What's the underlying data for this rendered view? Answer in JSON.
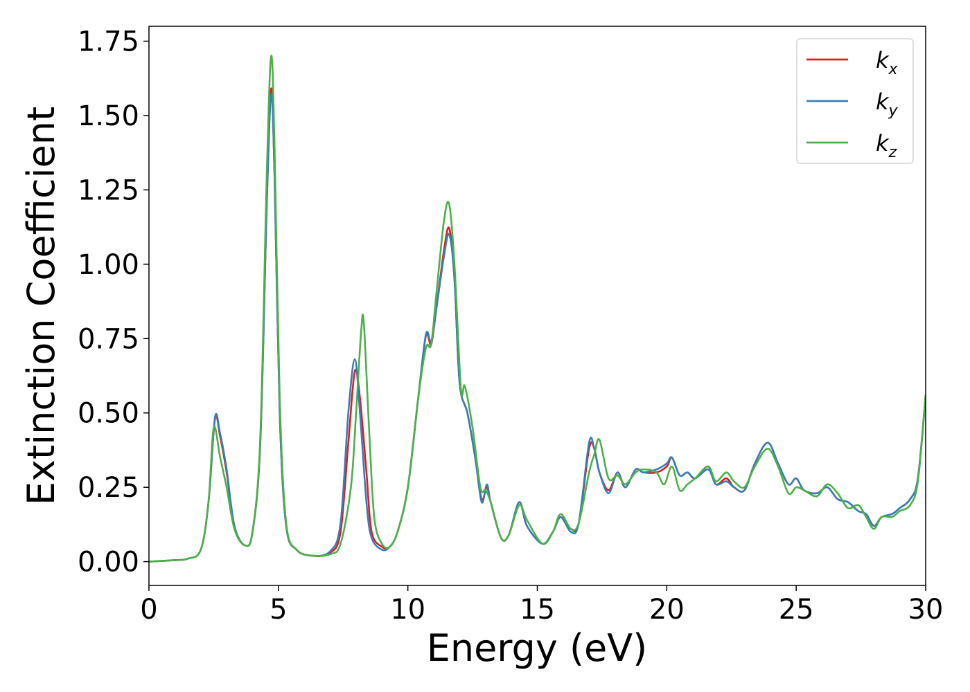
{
  "chart_data": {
    "type": "line",
    "title": "",
    "xlabel": "Energy (eV)",
    "ylabel": "Extinction Coefficient",
    "xlim": [
      0,
      30
    ],
    "ylim": [
      -0.08,
      1.8
    ],
    "xticks": [
      0,
      5,
      10,
      15,
      20,
      25,
      30
    ],
    "xtick_labels": [
      "0",
      "5",
      "10",
      "15",
      "20",
      "25",
      "30"
    ],
    "yticks": [
      0,
      0.25,
      0.5,
      0.75,
      1.0,
      1.25,
      1.5,
      1.75
    ],
    "ytick_labels": [
      "0.00",
      "0.25",
      "0.50",
      "0.75",
      "1.00",
      "1.25",
      "1.50",
      "1.75"
    ],
    "grid": false,
    "legend_position": "top-right",
    "series": [
      {
        "name": "k",
        "subscript": "x",
        "color": "#e41a1c",
        "points": [
          [
            0,
            0.0
          ],
          [
            1,
            0.005
          ],
          [
            1.5,
            0.01
          ],
          [
            2,
            0.04
          ],
          [
            2.3,
            0.2
          ],
          [
            2.55,
            0.48
          ],
          [
            2.75,
            0.42
          ],
          [
            3,
            0.3
          ],
          [
            3.3,
            0.12
          ],
          [
            3.7,
            0.055
          ],
          [
            4.0,
            0.1
          ],
          [
            4.3,
            0.4
          ],
          [
            4.55,
            1.2
          ],
          [
            4.72,
            1.59
          ],
          [
            4.85,
            1.3
          ],
          [
            5.05,
            0.5
          ],
          [
            5.3,
            0.12
          ],
          [
            5.7,
            0.04
          ],
          [
            6.3,
            0.02
          ],
          [
            7.0,
            0.03
          ],
          [
            7.4,
            0.1
          ],
          [
            7.7,
            0.4
          ],
          [
            7.95,
            0.64
          ],
          [
            8.15,
            0.55
          ],
          [
            8.4,
            0.3
          ],
          [
            8.6,
            0.1
          ],
          [
            9.0,
            0.05
          ],
          [
            9.3,
            0.05
          ],
          [
            9.6,
            0.1
          ],
          [
            10.0,
            0.25
          ],
          [
            10.4,
            0.55
          ],
          [
            10.7,
            0.76
          ],
          [
            10.9,
            0.73
          ],
          [
            11.1,
            0.85
          ],
          [
            11.4,
            1.05
          ],
          [
            11.6,
            1.12
          ],
          [
            11.8,
            0.95
          ],
          [
            12.0,
            0.6
          ],
          [
            12.3,
            0.5
          ],
          [
            12.6,
            0.35
          ],
          [
            12.85,
            0.21
          ],
          [
            13.05,
            0.25
          ],
          [
            13.2,
            0.2
          ],
          [
            13.6,
            0.08
          ],
          [
            13.9,
            0.09
          ],
          [
            14.3,
            0.2
          ],
          [
            14.6,
            0.12
          ],
          [
            15.2,
            0.06
          ],
          [
            15.6,
            0.1
          ],
          [
            15.9,
            0.15
          ],
          [
            16.3,
            0.11
          ],
          [
            16.6,
            0.13
          ],
          [
            17.0,
            0.38
          ],
          [
            17.2,
            0.38
          ],
          [
            17.4,
            0.3
          ],
          [
            17.75,
            0.24
          ],
          [
            18.1,
            0.3
          ],
          [
            18.4,
            0.25
          ],
          [
            18.8,
            0.31
          ],
          [
            19.1,
            0.3
          ],
          [
            19.6,
            0.3
          ],
          [
            20.0,
            0.32
          ],
          [
            20.2,
            0.35
          ],
          [
            20.5,
            0.29
          ],
          [
            20.8,
            0.3
          ],
          [
            21.1,
            0.28
          ],
          [
            21.6,
            0.32
          ],
          [
            21.9,
            0.26
          ],
          [
            22.3,
            0.28
          ],
          [
            22.6,
            0.25
          ],
          [
            23.0,
            0.24
          ],
          [
            23.4,
            0.33
          ],
          [
            23.9,
            0.4
          ],
          [
            24.3,
            0.33
          ],
          [
            24.7,
            0.26
          ],
          [
            25.0,
            0.28
          ],
          [
            25.3,
            0.24
          ],
          [
            25.8,
            0.23
          ],
          [
            26.2,
            0.25
          ],
          [
            26.6,
            0.21
          ],
          [
            27.0,
            0.2
          ],
          [
            27.4,
            0.17
          ],
          [
            27.7,
            0.16
          ],
          [
            28.0,
            0.12
          ],
          [
            28.3,
            0.15
          ],
          [
            28.7,
            0.16
          ],
          [
            29.0,
            0.18
          ],
          [
            29.4,
            0.21
          ],
          [
            29.7,
            0.28
          ],
          [
            30.0,
            0.56
          ]
        ]
      },
      {
        "name": "k",
        "subscript": "y",
        "color": "#377eb8",
        "points": [
          [
            0,
            0.0
          ],
          [
            1,
            0.005
          ],
          [
            1.5,
            0.01
          ],
          [
            2,
            0.04
          ],
          [
            2.3,
            0.2
          ],
          [
            2.55,
            0.485
          ],
          [
            2.75,
            0.43
          ],
          [
            3,
            0.31
          ],
          [
            3.3,
            0.12
          ],
          [
            3.7,
            0.055
          ],
          [
            4.0,
            0.1
          ],
          [
            4.3,
            0.4
          ],
          [
            4.55,
            1.2
          ],
          [
            4.72,
            1.57
          ],
          [
            4.85,
            1.3
          ],
          [
            5.05,
            0.5
          ],
          [
            5.3,
            0.12
          ],
          [
            5.7,
            0.04
          ],
          [
            6.3,
            0.02
          ],
          [
            7.0,
            0.035
          ],
          [
            7.4,
            0.13
          ],
          [
            7.7,
            0.5
          ],
          [
            7.95,
            0.68
          ],
          [
            8.15,
            0.5
          ],
          [
            8.4,
            0.2
          ],
          [
            8.6,
            0.08
          ],
          [
            9.0,
            0.04
          ],
          [
            9.3,
            0.05
          ],
          [
            9.6,
            0.1
          ],
          [
            10.0,
            0.25
          ],
          [
            10.4,
            0.55
          ],
          [
            10.7,
            0.765
          ],
          [
            10.9,
            0.74
          ],
          [
            11.1,
            0.85
          ],
          [
            11.4,
            1.03
          ],
          [
            11.6,
            1.1
          ],
          [
            11.8,
            0.95
          ],
          [
            12.0,
            0.6
          ],
          [
            12.3,
            0.5
          ],
          [
            12.6,
            0.35
          ],
          [
            12.85,
            0.2
          ],
          [
            13.05,
            0.26
          ],
          [
            13.2,
            0.2
          ],
          [
            13.6,
            0.08
          ],
          [
            13.9,
            0.09
          ],
          [
            14.3,
            0.2
          ],
          [
            14.6,
            0.12
          ],
          [
            15.2,
            0.06
          ],
          [
            15.6,
            0.1
          ],
          [
            15.9,
            0.15
          ],
          [
            16.3,
            0.1
          ],
          [
            16.6,
            0.13
          ],
          [
            17.0,
            0.4
          ],
          [
            17.2,
            0.38
          ],
          [
            17.4,
            0.3
          ],
          [
            17.75,
            0.23
          ],
          [
            18.1,
            0.3
          ],
          [
            18.4,
            0.25
          ],
          [
            18.8,
            0.31
          ],
          [
            19.1,
            0.3
          ],
          [
            19.6,
            0.31
          ],
          [
            20.0,
            0.33
          ],
          [
            20.2,
            0.35
          ],
          [
            20.5,
            0.29
          ],
          [
            20.8,
            0.3
          ],
          [
            21.1,
            0.28
          ],
          [
            21.6,
            0.31
          ],
          [
            21.9,
            0.26
          ],
          [
            22.3,
            0.27
          ],
          [
            22.6,
            0.25
          ],
          [
            23.0,
            0.24
          ],
          [
            23.4,
            0.33
          ],
          [
            23.9,
            0.4
          ],
          [
            24.3,
            0.33
          ],
          [
            24.7,
            0.26
          ],
          [
            25.0,
            0.28
          ],
          [
            25.3,
            0.24
          ],
          [
            25.8,
            0.23
          ],
          [
            26.2,
            0.25
          ],
          [
            26.6,
            0.21
          ],
          [
            27.0,
            0.2
          ],
          [
            27.4,
            0.17
          ],
          [
            27.7,
            0.16
          ],
          [
            28.0,
            0.12
          ],
          [
            28.3,
            0.15
          ],
          [
            28.7,
            0.16
          ],
          [
            29.0,
            0.18
          ],
          [
            29.4,
            0.21
          ],
          [
            29.7,
            0.28
          ],
          [
            30.0,
            0.56
          ]
        ]
      },
      {
        "name": "k",
        "subscript": "z",
        "color": "#4daf4a",
        "points": [
          [
            0,
            0.0
          ],
          [
            1,
            0.005
          ],
          [
            1.5,
            0.01
          ],
          [
            2,
            0.04
          ],
          [
            2.3,
            0.2
          ],
          [
            2.5,
            0.45
          ],
          [
            2.75,
            0.35
          ],
          [
            3,
            0.25
          ],
          [
            3.3,
            0.11
          ],
          [
            3.7,
            0.055
          ],
          [
            4.0,
            0.1
          ],
          [
            4.3,
            0.42
          ],
          [
            4.55,
            1.3
          ],
          [
            4.72,
            1.7
          ],
          [
            4.85,
            1.4
          ],
          [
            5.05,
            0.55
          ],
          [
            5.3,
            0.13
          ],
          [
            5.7,
            0.04
          ],
          [
            6.3,
            0.02
          ],
          [
            7.0,
            0.025
          ],
          [
            7.4,
            0.06
          ],
          [
            7.8,
            0.25
          ],
          [
            8.0,
            0.5
          ],
          [
            8.2,
            0.78
          ],
          [
            8.3,
            0.8
          ],
          [
            8.5,
            0.45
          ],
          [
            8.7,
            0.15
          ],
          [
            9.0,
            0.06
          ],
          [
            9.3,
            0.05
          ],
          [
            9.6,
            0.1
          ],
          [
            10.0,
            0.25
          ],
          [
            10.4,
            0.55
          ],
          [
            10.7,
            0.72
          ],
          [
            10.9,
            0.73
          ],
          [
            11.1,
            0.9
          ],
          [
            11.4,
            1.15
          ],
          [
            11.6,
            1.2
          ],
          [
            11.8,
            1.0
          ],
          [
            12.05,
            0.58
          ],
          [
            12.2,
            0.59
          ],
          [
            12.5,
            0.45
          ],
          [
            12.8,
            0.25
          ],
          [
            13.0,
            0.24
          ],
          [
            13.2,
            0.2
          ],
          [
            13.6,
            0.08
          ],
          [
            13.9,
            0.09
          ],
          [
            14.3,
            0.19
          ],
          [
            14.6,
            0.14
          ],
          [
            15.2,
            0.06
          ],
          [
            15.6,
            0.1
          ],
          [
            15.9,
            0.16
          ],
          [
            16.3,
            0.11
          ],
          [
            16.6,
            0.13
          ],
          [
            17.0,
            0.3
          ],
          [
            17.2,
            0.36
          ],
          [
            17.4,
            0.41
          ],
          [
            17.75,
            0.28
          ],
          [
            18.1,
            0.29
          ],
          [
            18.4,
            0.26
          ],
          [
            18.8,
            0.3
          ],
          [
            19.1,
            0.31
          ],
          [
            19.6,
            0.3
          ],
          [
            19.9,
            0.26
          ],
          [
            20.2,
            0.32
          ],
          [
            20.5,
            0.24
          ],
          [
            20.8,
            0.26
          ],
          [
            21.1,
            0.28
          ],
          [
            21.6,
            0.32
          ],
          [
            21.9,
            0.27
          ],
          [
            22.3,
            0.3
          ],
          [
            22.6,
            0.27
          ],
          [
            23.0,
            0.25
          ],
          [
            23.4,
            0.32
          ],
          [
            23.9,
            0.38
          ],
          [
            24.3,
            0.32
          ],
          [
            24.7,
            0.23
          ],
          [
            25.0,
            0.25
          ],
          [
            25.3,
            0.24
          ],
          [
            25.8,
            0.22
          ],
          [
            26.2,
            0.26
          ],
          [
            26.6,
            0.23
          ],
          [
            27.0,
            0.18
          ],
          [
            27.4,
            0.19
          ],
          [
            27.7,
            0.15
          ],
          [
            28.0,
            0.11
          ],
          [
            28.3,
            0.15
          ],
          [
            28.7,
            0.15
          ],
          [
            29.0,
            0.17
          ],
          [
            29.4,
            0.19
          ],
          [
            29.7,
            0.27
          ],
          [
            30.0,
            0.56
          ]
        ]
      }
    ]
  }
}
